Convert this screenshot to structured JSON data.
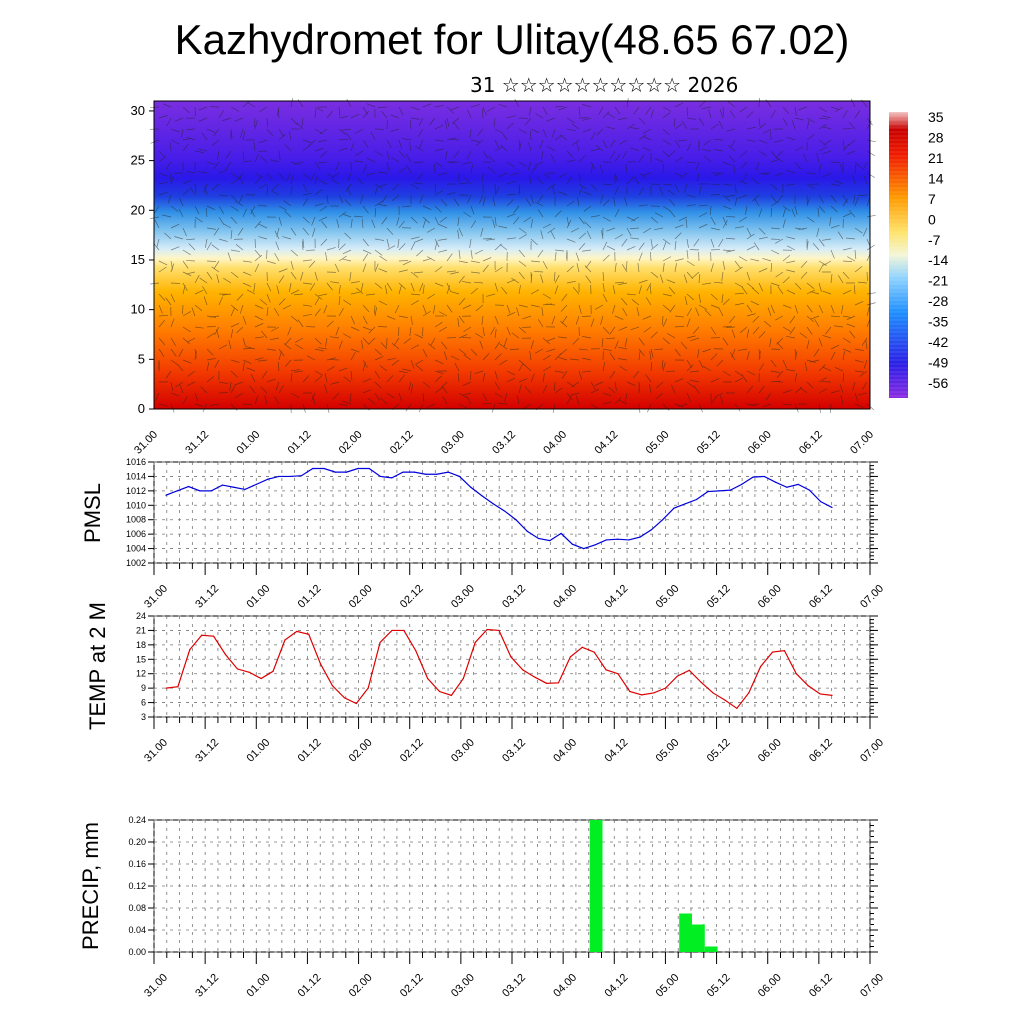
{
  "title": "Kazhydromet for Ulitay(48.65 67.02)",
  "subtitle": "31 ☆☆☆☆☆☆☆☆☆☆ 2026",
  "time_labels": [
    "31.00",
    "31.12",
    "01.00",
    "01.12",
    "02.00",
    "02.12",
    "03.00",
    "03.12",
    "04.00",
    "04.12",
    "05.00",
    "05.12",
    "06.00",
    "06.12",
    "07.00"
  ],
  "colors": {
    "pmsl": "#0000dd",
    "temp": "#dd0000",
    "precip": "#00ee22"
  },
  "chart_data": [
    {
      "type": "heatmap",
      "name": "vertical temperature cross-section with wind vectors",
      "y_ticks": [
        0,
        5,
        10,
        15,
        20,
        25,
        30
      ],
      "ylim": [
        0,
        31
      ],
      "colorbar_labels": [
        "35",
        "28",
        "21",
        "14",
        "7",
        "0",
        "-7",
        "-14",
        "-21",
        "-28",
        "-35",
        "-42",
        "-49",
        "-56"
      ],
      "colorbar_range": [
        -63,
        42
      ]
    },
    {
      "type": "line",
      "ylabel": "PMSL",
      "ylim": [
        1002,
        1016
      ],
      "y_ticks": [
        "1002",
        "1004",
        "1006",
        "1008",
        "1010",
        "1012",
        "1014",
        "1016"
      ],
      "values": [
        1011.4,
        1012.0,
        1012.6,
        1012.0,
        1012.0,
        1012.8,
        1012.5,
        1012.2,
        1012.9,
        1013.6,
        1014.0,
        1014.0,
        1014.1,
        1015.1,
        1015.1,
        1014.6,
        1014.6,
        1015.1,
        1015.1,
        1014.0,
        1013.8,
        1014.6,
        1014.6,
        1014.3,
        1014.3,
        1014.6,
        1014.0,
        1012.5,
        1011.3,
        1010.2,
        1009.2,
        1008.0,
        1006.4,
        1005.4,
        1005.1,
        1006.1,
        1004.6,
        1004.0,
        1004.5,
        1005.2,
        1005.3,
        1005.2,
        1005.6,
        1006.6,
        1008.0,
        1009.6,
        1010.2,
        1010.8,
        1011.9,
        1012.0,
        1012.1,
        1012.9,
        1013.9,
        1014.0,
        1013.2,
        1012.5,
        1012.9,
        1012.1,
        1010.5,
        1009.7
      ]
    },
    {
      "type": "line",
      "ylabel": "TEMP at 2 M",
      "ylim": [
        3,
        24
      ],
      "y_ticks": [
        "3",
        "6",
        "9",
        "12",
        "15",
        "18",
        "21",
        "24"
      ],
      "values": [
        9.0,
        9.3,
        17.0,
        20.0,
        19.8,
        16.0,
        13.0,
        12.3,
        11.0,
        12.5,
        19.0,
        20.8,
        20.2,
        14.0,
        9.5,
        7.0,
        5.8,
        9.0,
        18.5,
        21.0,
        21.0,
        16.8,
        11.0,
        8.3,
        7.5,
        11.0,
        18.5,
        21.2,
        21.0,
        15.5,
        12.8,
        11.3,
        10.0,
        10.1,
        15.5,
        17.5,
        16.5,
        12.8,
        12.0,
        8.3,
        7.6,
        8.0,
        9.0,
        11.5,
        12.7,
        10.2,
        8.0,
        6.5,
        4.8,
        8.0,
        13.5,
        16.5,
        16.8,
        12.0,
        9.5,
        7.8,
        7.5
      ]
    },
    {
      "type": "bar",
      "ylabel": "PRECIP, mm",
      "ylim": [
        0,
        0.24
      ],
      "y_ticks": [
        "0.00",
        "0.04",
        "0.08",
        "0.12",
        "0.16",
        "0.20",
        "0.24"
      ],
      "bars": [
        {
          "t": 34.5,
          "value": 0.24
        },
        {
          "t": 41.5,
          "value": 0.07
        },
        {
          "t": 42.5,
          "value": 0.05
        },
        {
          "t": 43.5,
          "value": 0.01
        }
      ]
    }
  ]
}
